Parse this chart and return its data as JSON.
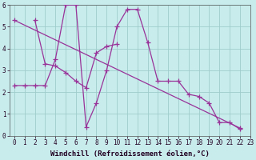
{
  "xlabel": "Windchill (Refroidissement éolien,°C)",
  "bg_color": "#c8ecec",
  "grid_color": "#a0cccc",
  "line_color": "#993399",
  "curve1_x": [
    0,
    1,
    2,
    3,
    4,
    5,
    6,
    7,
    8,
    9,
    10,
    11,
    12,
    13,
    14,
    15,
    16,
    17,
    18,
    19,
    20,
    21,
    22
  ],
  "curve1_y": [
    2.3,
    2.3,
    2.3,
    2.3,
    3.5,
    6.0,
    6.0,
    0.4,
    1.5,
    3.0,
    5.0,
    5.8,
    5.8,
    4.3,
    2.5,
    2.5,
    2.5,
    1.9,
    1.8,
    1.5,
    0.6,
    0.6,
    0.3
  ],
  "curve2_x": [
    2,
    3,
    4,
    5,
    6,
    7,
    8,
    9,
    10
  ],
  "curve2_y": [
    5.3,
    3.3,
    3.2,
    2.9,
    2.5,
    2.2,
    3.8,
    4.1,
    4.2
  ],
  "regline_x": [
    0,
    22
  ],
  "regline_y": [
    5.3,
    0.35
  ],
  "xlim": [
    -0.5,
    23
  ],
  "ylim": [
    0,
    6
  ],
  "xlabel_fontsize": 6.5,
  "tick_fontsize": 5.5
}
